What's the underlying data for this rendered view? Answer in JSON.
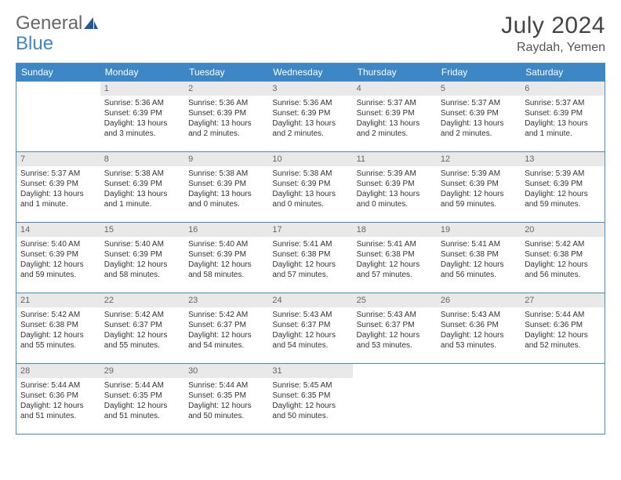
{
  "logo": {
    "text1": "General",
    "text2": "Blue",
    "text2_color": "#3d87c7",
    "icon_color": "#1e5a99"
  },
  "title": "July 2024",
  "location": "Raydah, Yemen",
  "colors": {
    "header_bg": "#3d87c7",
    "border": "#4a89c4",
    "daynum_bg": "#e9e9e9",
    "text": "#333333"
  },
  "weekdays": [
    "Sunday",
    "Monday",
    "Tuesday",
    "Wednesday",
    "Thursday",
    "Friday",
    "Saturday"
  ],
  "start_offset": 1,
  "days": [
    {
      "n": 1,
      "sr": "5:36 AM",
      "ss": "6:39 PM",
      "dl": "13 hours and 3 minutes."
    },
    {
      "n": 2,
      "sr": "5:36 AM",
      "ss": "6:39 PM",
      "dl": "13 hours and 2 minutes."
    },
    {
      "n": 3,
      "sr": "5:36 AM",
      "ss": "6:39 PM",
      "dl": "13 hours and 2 minutes."
    },
    {
      "n": 4,
      "sr": "5:37 AM",
      "ss": "6:39 PM",
      "dl": "13 hours and 2 minutes."
    },
    {
      "n": 5,
      "sr": "5:37 AM",
      "ss": "6:39 PM",
      "dl": "13 hours and 2 minutes."
    },
    {
      "n": 6,
      "sr": "5:37 AM",
      "ss": "6:39 PM",
      "dl": "13 hours and 1 minute."
    },
    {
      "n": 7,
      "sr": "5:37 AM",
      "ss": "6:39 PM",
      "dl": "13 hours and 1 minute."
    },
    {
      "n": 8,
      "sr": "5:38 AM",
      "ss": "6:39 PM",
      "dl": "13 hours and 1 minute."
    },
    {
      "n": 9,
      "sr": "5:38 AM",
      "ss": "6:39 PM",
      "dl": "13 hours and 0 minutes."
    },
    {
      "n": 10,
      "sr": "5:38 AM",
      "ss": "6:39 PM",
      "dl": "13 hours and 0 minutes."
    },
    {
      "n": 11,
      "sr": "5:39 AM",
      "ss": "6:39 PM",
      "dl": "13 hours and 0 minutes."
    },
    {
      "n": 12,
      "sr": "5:39 AM",
      "ss": "6:39 PM",
      "dl": "12 hours and 59 minutes."
    },
    {
      "n": 13,
      "sr": "5:39 AM",
      "ss": "6:39 PM",
      "dl": "12 hours and 59 minutes."
    },
    {
      "n": 14,
      "sr": "5:40 AM",
      "ss": "6:39 PM",
      "dl": "12 hours and 59 minutes."
    },
    {
      "n": 15,
      "sr": "5:40 AM",
      "ss": "6:39 PM",
      "dl": "12 hours and 58 minutes."
    },
    {
      "n": 16,
      "sr": "5:40 AM",
      "ss": "6:39 PM",
      "dl": "12 hours and 58 minutes."
    },
    {
      "n": 17,
      "sr": "5:41 AM",
      "ss": "6:38 PM",
      "dl": "12 hours and 57 minutes."
    },
    {
      "n": 18,
      "sr": "5:41 AM",
      "ss": "6:38 PM",
      "dl": "12 hours and 57 minutes."
    },
    {
      "n": 19,
      "sr": "5:41 AM",
      "ss": "6:38 PM",
      "dl": "12 hours and 56 minutes."
    },
    {
      "n": 20,
      "sr": "5:42 AM",
      "ss": "6:38 PM",
      "dl": "12 hours and 56 minutes."
    },
    {
      "n": 21,
      "sr": "5:42 AM",
      "ss": "6:38 PM",
      "dl": "12 hours and 55 minutes."
    },
    {
      "n": 22,
      "sr": "5:42 AM",
      "ss": "6:37 PM",
      "dl": "12 hours and 55 minutes."
    },
    {
      "n": 23,
      "sr": "5:42 AM",
      "ss": "6:37 PM",
      "dl": "12 hours and 54 minutes."
    },
    {
      "n": 24,
      "sr": "5:43 AM",
      "ss": "6:37 PM",
      "dl": "12 hours and 54 minutes."
    },
    {
      "n": 25,
      "sr": "5:43 AM",
      "ss": "6:37 PM",
      "dl": "12 hours and 53 minutes."
    },
    {
      "n": 26,
      "sr": "5:43 AM",
      "ss": "6:36 PM",
      "dl": "12 hours and 53 minutes."
    },
    {
      "n": 27,
      "sr": "5:44 AM",
      "ss": "6:36 PM",
      "dl": "12 hours and 52 minutes."
    },
    {
      "n": 28,
      "sr": "5:44 AM",
      "ss": "6:36 PM",
      "dl": "12 hours and 51 minutes."
    },
    {
      "n": 29,
      "sr": "5:44 AM",
      "ss": "6:35 PM",
      "dl": "12 hours and 51 minutes."
    },
    {
      "n": 30,
      "sr": "5:44 AM",
      "ss": "6:35 PM",
      "dl": "12 hours and 50 minutes."
    },
    {
      "n": 31,
      "sr": "5:45 AM",
      "ss": "6:35 PM",
      "dl": "12 hours and 50 minutes."
    }
  ],
  "labels": {
    "sunrise": "Sunrise:",
    "sunset": "Sunset:",
    "daylight": "Daylight:"
  }
}
